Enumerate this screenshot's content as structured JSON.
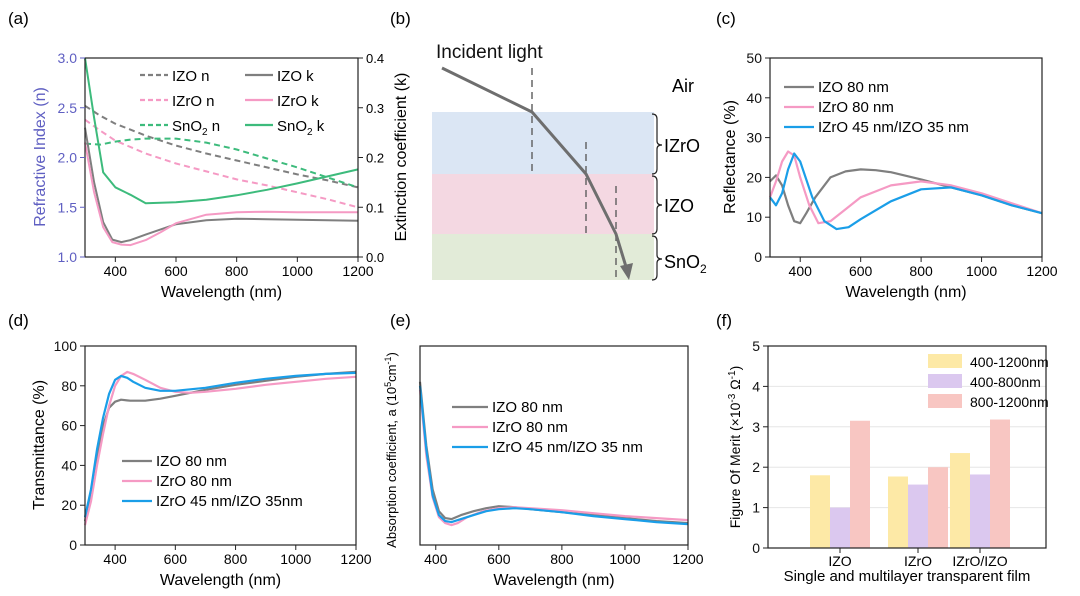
{
  "panel_labels": [
    "(a)",
    "(b)",
    "(c)",
    "(d)",
    "(e)",
    "(f)"
  ],
  "colors": {
    "izo": "#7f7f7f",
    "izro": "#f59ac4",
    "sno2": "#3dbb7c",
    "multi": "#1a9ee8",
    "axis_left_a": "#5f5fc2",
    "layer_izro": "#dbe6f4",
    "layer_izo": "#f4d8e2",
    "layer_sno2": "#e2ebd8",
    "bar_400_1200": "#fde9a6",
    "bar_400_800": "#dbc8ef",
    "bar_800_1200": "#f8c6c2",
    "arrow": "#6e6e6e"
  },
  "diagram_b": {
    "incident_label": "Incident light",
    "layer_labels": [
      "Air",
      "IZrO",
      "IZO",
      "SnO",
      "2"
    ]
  },
  "chart_data": [
    {
      "id": "a",
      "type": "line",
      "xlabel": "Wavelength (nm)",
      "ylabel": "Refractive Index (n)",
      "y2label": "Extinction coefficient (k)",
      "xlim": [
        300,
        1200
      ],
      "ylim": [
        1.0,
        3.0
      ],
      "y2lim": [
        0,
        0.4
      ],
      "xticks": [
        400,
        600,
        800,
        1000,
        1200
      ],
      "yticks": [
        1.0,
        1.5,
        2.0,
        2.5,
        3.0
      ],
      "y2ticks": [
        0.0,
        0.1,
        0.2,
        0.3,
        0.4
      ],
      "series": [
        {
          "name": "IZO n",
          "label": "IZO n",
          "sub": "",
          "suffix": "",
          "axis": "left",
          "style": "dashed",
          "color": "#7f7f7f",
          "x": [
            300,
            350,
            400,
            500,
            600,
            700,
            800,
            900,
            1000,
            1100,
            1200
          ],
          "y": [
            2.52,
            2.42,
            2.34,
            2.22,
            2.12,
            2.04,
            1.97,
            1.9,
            1.83,
            1.77,
            1.7
          ]
        },
        {
          "name": "IZrO n",
          "label": "IZrO n",
          "sub": "",
          "suffix": "",
          "axis": "left",
          "style": "dashed",
          "color": "#f59ac4",
          "x": [
            300,
            350,
            400,
            500,
            600,
            700,
            800,
            900,
            1000,
            1100,
            1200
          ],
          "y": [
            2.38,
            2.27,
            2.17,
            2.04,
            1.94,
            1.86,
            1.78,
            1.72,
            1.65,
            1.58,
            1.5
          ]
        },
        {
          "name": "SnO2 n",
          "label": "SnO",
          "sub": "2",
          "suffix": " n",
          "axis": "left",
          "style": "dashed",
          "color": "#3dbb7c",
          "x": [
            300,
            350,
            400,
            450,
            500,
            600,
            700,
            800,
            900,
            1000,
            1100,
            1200
          ],
          "y": [
            2.14,
            2.13,
            2.16,
            2.18,
            2.19,
            2.19,
            2.15,
            2.08,
            1.99,
            1.9,
            1.8,
            1.7
          ]
        },
        {
          "name": "IZO k",
          "label": "IZO k",
          "sub": "",
          "suffix": "",
          "axis": "right",
          "style": "solid",
          "color": "#7f7f7f",
          "x": [
            300,
            330,
            360,
            390,
            420,
            450,
            500,
            600,
            700,
            800,
            900,
            1000,
            1100,
            1200
          ],
          "y": [
            0.26,
            0.15,
            0.07,
            0.035,
            0.03,
            0.034,
            0.045,
            0.066,
            0.074,
            0.077,
            0.076,
            0.075,
            0.074,
            0.073
          ]
        },
        {
          "name": "IZrO k",
          "label": "IZrO k",
          "sub": "",
          "suffix": "",
          "axis": "right",
          "style": "solid",
          "color": "#f59ac4",
          "x": [
            300,
            330,
            360,
            390,
            420,
            450,
            500,
            550,
            600,
            700,
            800,
            900,
            1000,
            1100,
            1200
          ],
          "y": [
            0.23,
            0.13,
            0.06,
            0.03,
            0.025,
            0.024,
            0.034,
            0.05,
            0.068,
            0.085,
            0.09,
            0.091,
            0.09,
            0.09,
            0.09
          ]
        },
        {
          "name": "SnO2 k",
          "label": "SnO",
          "sub": "2",
          "suffix": " k",
          "axis": "right",
          "style": "solid",
          "color": "#3dbb7c",
          "x": [
            300,
            330,
            360,
            400,
            450,
            500,
            600,
            700,
            800,
            900,
            1000,
            1100,
            1200
          ],
          "y": [
            0.4,
            0.28,
            0.17,
            0.14,
            0.125,
            0.108,
            0.11,
            0.115,
            0.124,
            0.135,
            0.148,
            0.162,
            0.176
          ]
        }
      ]
    },
    {
      "id": "c",
      "type": "line",
      "xlabel": "Wavelength (nm)",
      "ylabel": "Reflectance (%)",
      "xlim": [
        300,
        1200
      ],
      "ylim": [
        0,
        50
      ],
      "xticks": [
        400,
        600,
        800,
        1000,
        1200
      ],
      "yticks": [
        0,
        10,
        20,
        30,
        40,
        50
      ],
      "series": [
        {
          "name": "IZO 80 nm",
          "color": "#7f7f7f",
          "x": [
            300,
            320,
            340,
            360,
            380,
            400,
            420,
            450,
            500,
            550,
            600,
            650,
            700,
            800,
            900,
            1000,
            1100,
            1200
          ],
          "y": [
            19,
            20.5,
            18,
            13,
            9,
            8.5,
            11,
            15,
            20,
            21.5,
            22,
            21.8,
            21.3,
            19.5,
            17.5,
            15.5,
            13,
            11
          ]
        },
        {
          "name": "IZrO 80 nm",
          "color": "#f59ac4",
          "x": [
            300,
            320,
            340,
            360,
            380,
            400,
            430,
            460,
            500,
            550,
            600,
            700,
            800,
            900,
            1000,
            1100,
            1200
          ],
          "y": [
            15,
            19,
            24,
            26.5,
            25.5,
            20,
            13,
            8.5,
            9,
            12,
            15,
            18,
            19,
            18,
            16,
            13.5,
            11
          ]
        },
        {
          "name": "IZrO 45 nm/IZO 35 nm",
          "color": "#1a9ee8",
          "x": [
            300,
            320,
            340,
            360,
            380,
            400,
            440,
            480,
            520,
            560,
            600,
            700,
            800,
            900,
            1000,
            1100,
            1200
          ],
          "y": [
            15,
            13,
            16,
            22,
            26,
            24,
            15,
            9,
            7,
            7.5,
            9.5,
            14,
            17,
            17.5,
            15.5,
            13,
            11
          ]
        }
      ]
    },
    {
      "id": "d",
      "type": "line",
      "xlabel": "Wavelength (nm)",
      "ylabel": "Transmittance (%)",
      "xlim": [
        300,
        1200
      ],
      "ylim": [
        0,
        100
      ],
      "xticks": [
        400,
        600,
        800,
        1000,
        1200
      ],
      "yticks": [
        0,
        20,
        40,
        60,
        80,
        100
      ],
      "series": [
        {
          "name": "IZO 80 nm",
          "color": "#7f7f7f",
          "x": [
            300,
            320,
            340,
            360,
            380,
            400,
            420,
            450,
            500,
            550,
            600,
            700,
            800,
            900,
            1000,
            1100,
            1200
          ],
          "y": [
            12,
            25,
            45,
            60,
            69,
            72,
            73,
            72.5,
            72.5,
            73.5,
            75,
            78,
            80.5,
            82.5,
            84.5,
            86,
            87
          ]
        },
        {
          "name": "IZrO 80 nm",
          "color": "#f59ac4",
          "x": [
            300,
            320,
            340,
            360,
            380,
            400,
            420,
            440,
            460,
            500,
            550,
            600,
            650,
            700,
            800,
            900,
            1000,
            1100,
            1200
          ],
          "y": [
            10,
            22,
            40,
            56,
            70,
            80,
            85,
            87,
            86,
            83,
            79,
            77,
            76.5,
            77,
            78.5,
            80.5,
            82,
            83.5,
            84.5
          ]
        },
        {
          "name": "IZrO 45 nm/IZO 35nm",
          "color": "#1a9ee8",
          "x": [
            300,
            320,
            340,
            360,
            380,
            400,
            420,
            440,
            460,
            500,
            550,
            600,
            700,
            800,
            900,
            1000,
            1100,
            1200
          ],
          "y": [
            14,
            28,
            48,
            64,
            76,
            83,
            85,
            84,
            82,
            79,
            77.5,
            77.5,
            79,
            81.5,
            83.5,
            85,
            86,
            86.5
          ]
        }
      ]
    },
    {
      "id": "e",
      "type": "line",
      "xlabel": "Wavelength (nm)",
      "ylabel": "Absorption coefficient, a",
      "ylabel_unit": "(10",
      "ylabel_sup1": "5",
      "ylabel_mid": "cm",
      "ylabel_sup2": "-1",
      "ylabel_end": ")",
      "xlim": [
        350,
        1200
      ],
      "ylim": [
        0,
        1
      ],
      "xticks": [
        400,
        600,
        800,
        1000,
        1200
      ],
      "series": [
        {
          "name": "IZO 80 nm",
          "color": "#7f7f7f",
          "x": [
            350,
            370,
            390,
            410,
            430,
            450,
            480,
            520,
            560,
            600,
            650,
            700,
            800,
            900,
            1000,
            1100,
            1200
          ],
          "y": [
            0.82,
            0.5,
            0.28,
            0.17,
            0.135,
            0.13,
            0.15,
            0.17,
            0.185,
            0.195,
            0.19,
            0.18,
            0.165,
            0.15,
            0.135,
            0.12,
            0.11
          ]
        },
        {
          "name": "IZrO 80 nm",
          "color": "#f59ac4",
          "x": [
            350,
            370,
            390,
            410,
            430,
            450,
            470,
            500,
            550,
            600,
            650,
            700,
            800,
            900,
            1000,
            1100,
            1200
          ],
          "y": [
            0.78,
            0.45,
            0.24,
            0.14,
            0.11,
            0.1,
            0.11,
            0.14,
            0.17,
            0.185,
            0.19,
            0.185,
            0.175,
            0.16,
            0.145,
            0.135,
            0.125
          ]
        },
        {
          "name": "IZrO 45 nm/IZO 35 nm",
          "color": "#1a9ee8",
          "x": [
            350,
            370,
            390,
            410,
            430,
            450,
            480,
            520,
            560,
            600,
            650,
            700,
            800,
            900,
            1000,
            1100,
            1200
          ],
          "y": [
            0.8,
            0.48,
            0.25,
            0.15,
            0.12,
            0.115,
            0.13,
            0.15,
            0.17,
            0.18,
            0.185,
            0.18,
            0.165,
            0.145,
            0.13,
            0.115,
            0.105
          ]
        }
      ]
    },
    {
      "id": "f",
      "type": "bar",
      "xlabel": "Single and multilayer transparent film",
      "ylabel": "Figure Of Merit (×10",
      "ylabel_sup1": "-3",
      "ylabel_mid": " Ω",
      "ylabel_sup2": "-1",
      "ylabel_end": ")",
      "ylim": [
        0,
        5
      ],
      "yticks": [
        0,
        1,
        2,
        3,
        4,
        5
      ],
      "categories": [
        "IZO",
        "IZrO",
        "IZrO/IZO"
      ],
      "series": [
        {
          "name": "400-1200nm",
          "color": "#fde9a6",
          "values": [
            1.8,
            1.77,
            2.35
          ]
        },
        {
          "name": "400-800nm",
          "color": "#dbc8ef",
          "values": [
            1.0,
            1.57,
            1.82
          ]
        },
        {
          "name": "800-1200nm",
          "color": "#f8c6c2",
          "values": [
            3.15,
            2.0,
            3.18
          ]
        }
      ]
    }
  ]
}
